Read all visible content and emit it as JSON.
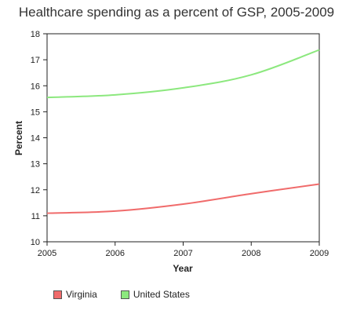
{
  "chart_data": {
    "type": "line",
    "title": "Healthcare spending as a percent of GSP, 2005-2009",
    "xlabel": "Year",
    "ylabel": "Percent",
    "x": [
      2005,
      2006,
      2007,
      2008,
      2009
    ],
    "xlim": [
      2005,
      2009
    ],
    "ylim": [
      10,
      18
    ],
    "yticks": [
      10,
      11,
      12,
      13,
      14,
      15,
      16,
      17,
      18
    ],
    "grid": false,
    "legend_position": "bottom",
    "series": [
      {
        "name": "Virginia",
        "color": "#f06b6b",
        "values": [
          11.1,
          11.18,
          11.45,
          11.85,
          12.22
        ]
      },
      {
        "name": "United States",
        "color": "#8ce87e",
        "values": [
          15.55,
          15.65,
          15.92,
          16.42,
          17.38
        ]
      }
    ]
  }
}
